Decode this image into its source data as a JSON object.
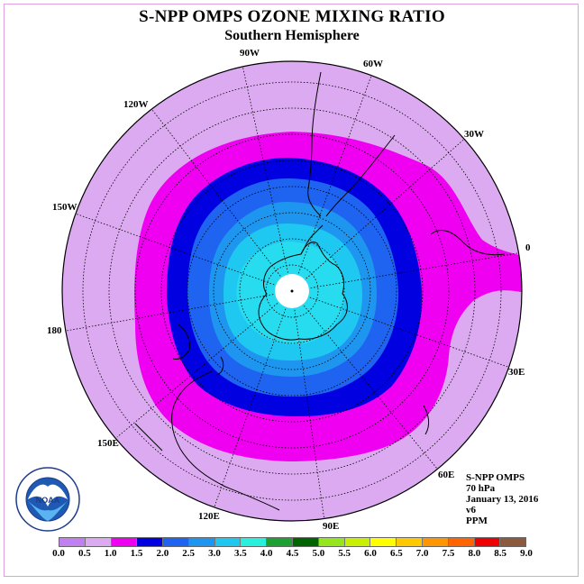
{
  "title": "S-NPP OMPS OZONE MIXING RATIO",
  "subtitle": "Southern Hemisphere",
  "longitude_labels": [
    "90W",
    "60W",
    "30W",
    "0",
    "30E",
    "60E",
    "90E",
    "120E",
    "150E",
    "180",
    "150W",
    "120W"
  ],
  "info": {
    "instrument": "S-NPP OMPS",
    "level": "70 hPa",
    "date": "January 13, 2016",
    "version": "v6",
    "units": "PPM"
  },
  "logo": {
    "name": "NOAA",
    "ring_text": "NATIONAL OCEANIC AND ATMOSPHERIC ADMINISTRATION - U.S. DEPARTMENT OF COMMERCE"
  },
  "colorbar": {
    "ticks": [
      "0.0",
      "0.5",
      "1.0",
      "1.5",
      "2.0",
      "2.5",
      "3.0",
      "3.5",
      "4.0",
      "4.5",
      "5.0",
      "5.5",
      "6.0",
      "6.5",
      "7.0",
      "7.5",
      "8.0",
      "8.5",
      "9.0"
    ],
    "colors": [
      "#c080f0",
      "#dcaaf0",
      "#f000f0",
      "#0000e0",
      "#1e64f0",
      "#1e96f0",
      "#1ec8f0",
      "#28f0dc",
      "#1ea032",
      "#006400",
      "#96e61e",
      "#c8f000",
      "#ffff00",
      "#ffc800",
      "#ff9600",
      "#ff6400",
      "#f00000",
      "#8c5a3c"
    ]
  },
  "map_colors": {
    "background": "#dcaaf0",
    "band_1_0_1_5": "#f000f0",
    "band_1_5_2_0": "#0000e0",
    "band_2_0_2_5": "#1e64f0",
    "band_2_5_3_0": "#1e96f0",
    "band_3_0_3_5": "#1ec8f0",
    "band_3_5_4_0": "#28dcf0",
    "pole_gap": "#ffffff"
  }
}
